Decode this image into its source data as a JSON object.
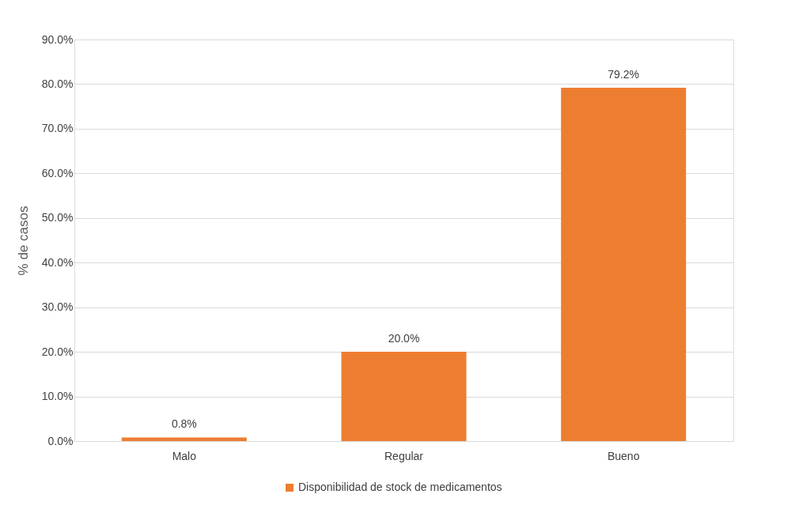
{
  "chart_data": {
    "type": "bar",
    "ylabel": "% de casos",
    "categories": [
      "Malo",
      "Regular",
      "Bueno"
    ],
    "series": [
      {
        "name": "Disponibilidad de stock de medicamentos",
        "color": "#ed7d31",
        "values": [
          0.8,
          20.0,
          79.2
        ],
        "value_labels": [
          "0.8%",
          "20.0%",
          "79.2%"
        ]
      }
    ],
    "ylim": [
      0,
      90
    ],
    "yticks": [
      {
        "value": 0,
        "label": "0.0%"
      },
      {
        "value": 10,
        "label": "10.0%"
      },
      {
        "value": 20,
        "label": "20.0%"
      },
      {
        "value": 30,
        "label": "30.0%"
      },
      {
        "value": 40,
        "label": "40.0%"
      },
      {
        "value": 50,
        "label": "50.0%"
      },
      {
        "value": 60,
        "label": "60.0%"
      },
      {
        "value": 70,
        "label": "70.0%"
      },
      {
        "value": 80,
        "label": "80.0%"
      },
      {
        "value": 90,
        "label": "90.0%"
      }
    ],
    "grid": "y",
    "legend": "bottom"
  }
}
